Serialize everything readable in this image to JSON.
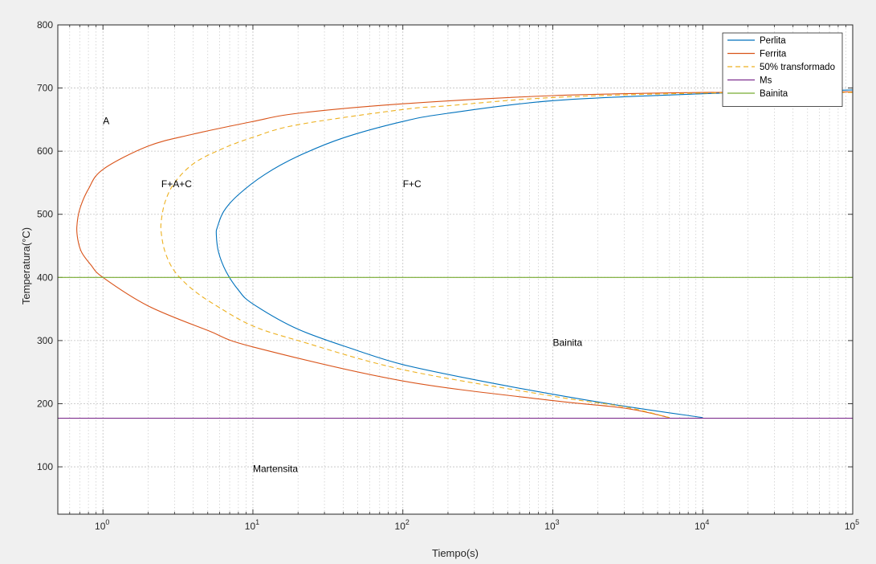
{
  "colors": {
    "figure_background": "#f0f0f0",
    "axes_background": "#ffffff",
    "perlita": "#0072bd",
    "ferrita": "#d95319",
    "fifty_percent": "#edb120",
    "ms": "#7e2f8e",
    "bainita": "#77ac30"
  },
  "chart_data": {
    "type": "line",
    "xlabel": "Tiempo(s)",
    "ylabel": "Temperatura(°C)",
    "x_scale": "log",
    "xlim": [
      0.5,
      100000
    ],
    "ylim": [
      25,
      800
    ],
    "grid": true,
    "minor_grid_x": true,
    "legend_position": "top-right",
    "x_ticks": [
      {
        "value": 1,
        "base": "10",
        "exp": "0"
      },
      {
        "value": 10,
        "base": "10",
        "exp": "1"
      },
      {
        "value": 100,
        "base": "10",
        "exp": "2"
      },
      {
        "value": 1000,
        "base": "10",
        "exp": "3"
      },
      {
        "value": 10000,
        "base": "10",
        "exp": "4"
      },
      {
        "value": 100000,
        "base": "10",
        "exp": "5"
      }
    ],
    "y_ticks": [
      {
        "value": 100,
        "label": "100"
      },
      {
        "value": 200,
        "label": "200"
      },
      {
        "value": 300,
        "label": "300"
      },
      {
        "value": 400,
        "label": "400"
      },
      {
        "value": 500,
        "label": "500"
      },
      {
        "value": 600,
        "label": "600"
      },
      {
        "value": 700,
        "label": "700"
      },
      {
        "value": 800,
        "label": "800"
      }
    ],
    "series": [
      {
        "name": "Perlita",
        "style": "solid",
        "points": [
          [
            100000,
            697
          ],
          [
            10000,
            691
          ],
          [
            1000,
            680
          ],
          [
            200,
            660
          ],
          [
            100,
            647
          ],
          [
            40,
            621
          ],
          [
            20,
            592
          ],
          [
            12,
            563
          ],
          [
            8,
            531
          ],
          [
            6.4,
            505
          ],
          [
            5.8,
            480
          ],
          [
            5.7,
            468
          ],
          [
            5.9,
            440
          ],
          [
            6.6,
            410
          ],
          [
            8,
            380
          ],
          [
            10,
            358
          ],
          [
            20,
            318
          ],
          [
            50,
            284
          ],
          [
            100,
            262
          ],
          [
            300,
            238
          ],
          [
            1000,
            215
          ],
          [
            3000,
            196
          ],
          [
            10000,
            178
          ]
        ]
      },
      {
        "name": "Ferrita",
        "style": "solid",
        "points": [
          [
            100000,
            694
          ],
          [
            10000,
            693
          ],
          [
            1000,
            688
          ],
          [
            100,
            675
          ],
          [
            20,
            660
          ],
          [
            10,
            647
          ],
          [
            4,
            627
          ],
          [
            2,
            608
          ],
          [
            1,
            571
          ],
          [
            0.8,
            540
          ],
          [
            0.7,
            508
          ],
          [
            0.67,
            480
          ],
          [
            0.68,
            460
          ],
          [
            0.72,
            440
          ],
          [
            0.83,
            420
          ],
          [
            1,
            400
          ],
          [
            2,
            355
          ],
          [
            5,
            316
          ],
          [
            10,
            290
          ],
          [
            100,
            236
          ],
          [
            1000,
            205
          ],
          [
            3000,
            193
          ],
          [
            6000,
            178
          ]
        ]
      },
      {
        "name": "50% transformado",
        "style": "dashed",
        "points": [
          [
            100000,
            693
          ],
          [
            10000,
            692
          ],
          [
            1000,
            685
          ],
          [
            200,
            672
          ],
          [
            100,
            666
          ],
          [
            20,
            642
          ],
          [
            10,
            622
          ],
          [
            6,
            602
          ],
          [
            4,
            580
          ],
          [
            3,
            550
          ],
          [
            2.6,
            520
          ],
          [
            2.45,
            490
          ],
          [
            2.45,
            470
          ],
          [
            2.6,
            440
          ],
          [
            3,
            410
          ],
          [
            4,
            380
          ],
          [
            6,
            352
          ],
          [
            10,
            323
          ],
          [
            20,
            300
          ],
          [
            100,
            254
          ],
          [
            1000,
            212
          ],
          [
            3000,
            195
          ],
          [
            6000,
            178
          ]
        ]
      },
      {
        "name": "Ms",
        "style": "solid",
        "points": [
          [
            0.5,
            177
          ],
          [
            100000,
            177
          ]
        ]
      },
      {
        "name": "Bainita",
        "style": "solid",
        "points": [
          [
            0.5,
            400
          ],
          [
            100000,
            400
          ]
        ]
      }
    ],
    "annotations": [
      {
        "text": "A",
        "x": 1.0,
        "y": 648
      },
      {
        "text": "F+A+C",
        "x": 2.45,
        "y": 548
      },
      {
        "text": "F+C",
        "x": 100,
        "y": 548
      },
      {
        "text": "Bainita",
        "x": 1000,
        "y": 297
      },
      {
        "text": "Martensita",
        "x": 10,
        "y": 97
      }
    ]
  }
}
